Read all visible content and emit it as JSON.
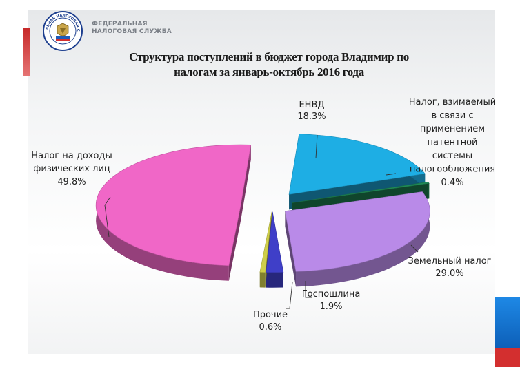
{
  "header": {
    "org_line1": "ФЕДЕРАЛЬНАЯ",
    "org_line2": "НАЛОГОВАЯ СЛУЖБА",
    "logo_ring_text": "ФЕДЕРАЛЬНАЯ НАЛОГОВАЯ СЛУЖБА",
    "title_line1": "Структура поступлений в бюджет города Владимир по",
    "title_line2": "налогам за январь-октябрь 2016 года"
  },
  "chart_data": {
    "type": "pie",
    "title": "Структура поступлений в бюджет города Владимир по налогам за январь-октябрь 2016 года",
    "unit": "%",
    "slices": [
      {
        "label": "ЕНВД",
        "value": 18.3,
        "display": "18.3%",
        "color": "#1eaee4"
      },
      {
        "label": "Налог, взимаемый в связи с применением патентной системы налогообложения",
        "value": 0.4,
        "display": "0.4%",
        "color": "#1f8a57"
      },
      {
        "label": "Земельный налог",
        "value": 29.0,
        "display": "29.0%",
        "color": "#b98ae8"
      },
      {
        "label": "Госпошлина",
        "value": 1.9,
        "display": "1.9%",
        "color": "#3f3fc8"
      },
      {
        "label": "Прочие",
        "value": 0.6,
        "display": "0.6%",
        "color": "#cfcf4a"
      },
      {
        "label": "Налог на доходы физических лиц",
        "value": 49.8,
        "display": "49.8%",
        "color": "#f067c7"
      }
    ],
    "label_lines": [
      [
        "ЕНВД"
      ],
      [
        "Налог, взимаемый",
        "в связи с",
        "применением",
        "патентной",
        "системы",
        "налогообложения"
      ],
      [
        "Земельный налог"
      ],
      [
        "Госпошлина"
      ],
      [
        "Прочие"
      ],
      [
        "Налог на доходы",
        "физических лиц"
      ]
    ]
  }
}
